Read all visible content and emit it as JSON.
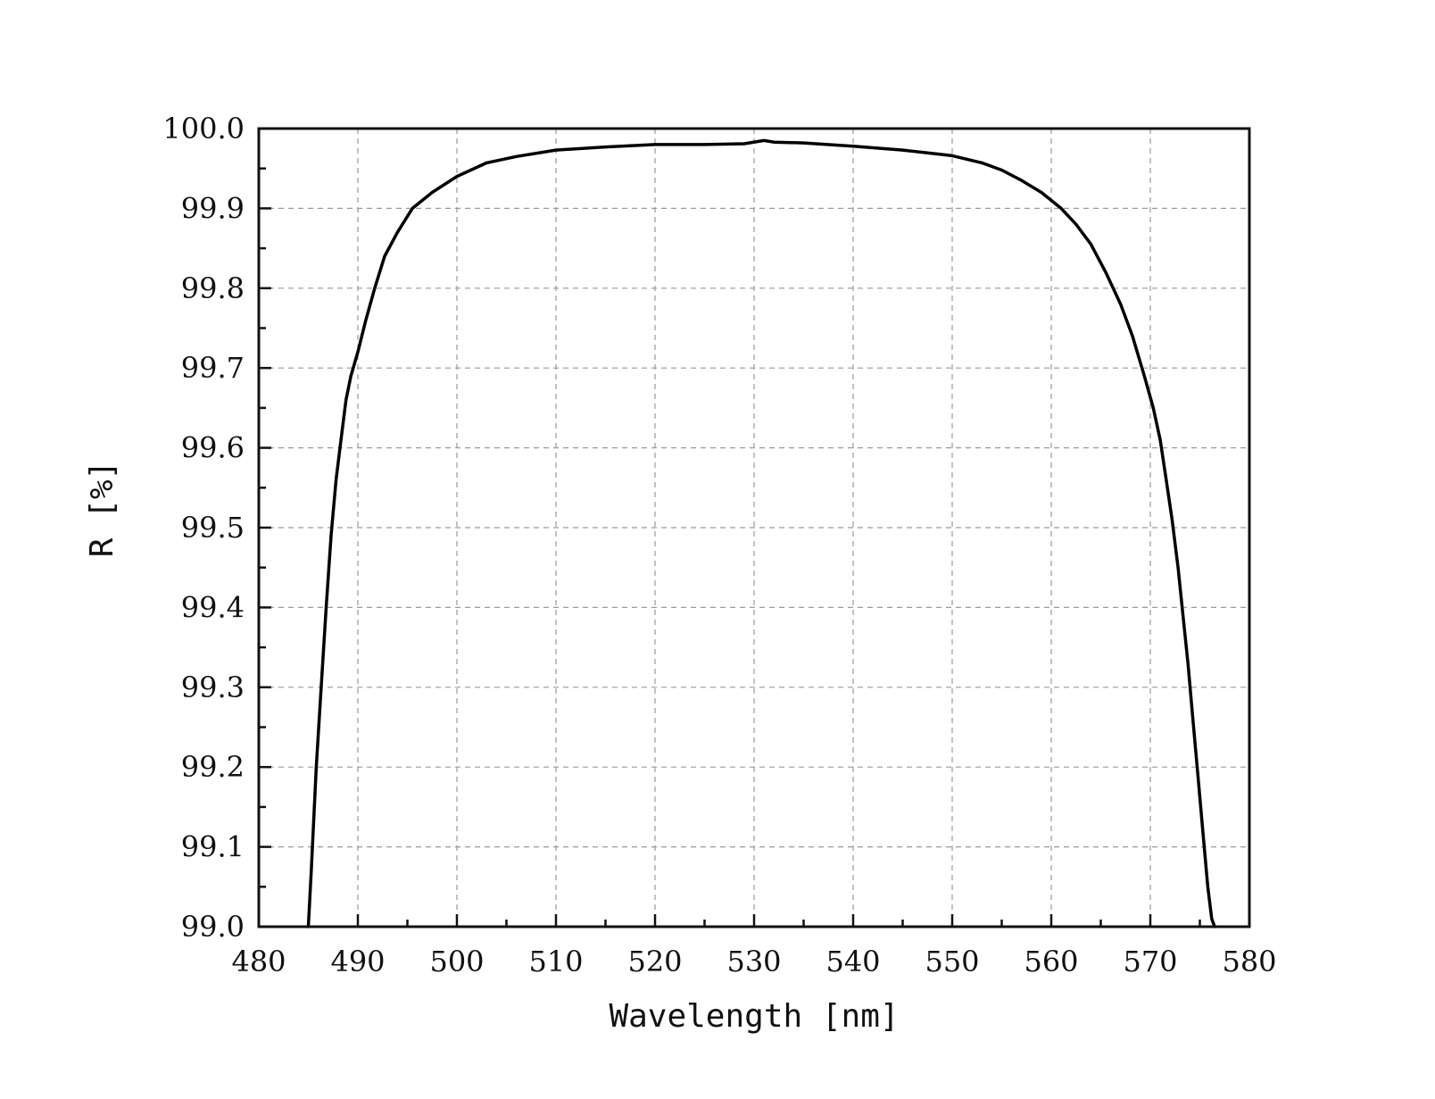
{
  "chart_data": {
    "type": "line",
    "title": "",
    "xlabel": "Wavelength [nm]",
    "ylabel": "R [%]",
    "xlim": [
      480,
      580
    ],
    "ylim": [
      99.0,
      100.0
    ],
    "xticks": [
      "480",
      "490",
      "500",
      "510",
      "520",
      "530",
      "540",
      "550",
      "560",
      "570",
      "580"
    ],
    "yticks": [
      "99.0",
      "99.1",
      "99.2",
      "99.3",
      "99.4",
      "99.5",
      "99.6",
      "99.7",
      "99.8",
      "99.9",
      "100.0"
    ],
    "grid": true,
    "line_color": "#000000",
    "series": [
      {
        "x": [
          485.0,
          485.3,
          485.8,
          486.3,
          486.8,
          487.3,
          487.8,
          488.3,
          488.8,
          489.3,
          490.0,
          490.8,
          491.7,
          492.7,
          494.0,
          495.5,
          497.5,
          500.0,
          503.0,
          506.0,
          510.0,
          515.0,
          520.0,
          525.0,
          529.0,
          531.0,
          532.0,
          535.0,
          540.0,
          545.0,
          550.0,
          553.0,
          555.0,
          557.0,
          559.0,
          561.0,
          562.5,
          564.0,
          565.5,
          567.0,
          568.2,
          569.4,
          570.3,
          571.0,
          571.6,
          572.2,
          572.8,
          573.3,
          573.8,
          574.3,
          574.8,
          575.3,
          575.8,
          576.2,
          576.5
        ],
        "y": [
          99.0,
          99.07,
          99.2,
          99.3,
          99.4,
          99.49,
          99.56,
          99.61,
          99.66,
          99.69,
          99.72,
          99.76,
          99.8,
          99.84,
          99.87,
          99.9,
          99.92,
          99.94,
          99.957,
          99.965,
          99.973,
          99.977,
          99.98,
          99.98,
          99.981,
          99.985,
          99.983,
          99.982,
          99.978,
          99.973,
          99.966,
          99.957,
          99.948,
          99.935,
          99.92,
          99.9,
          99.88,
          99.855,
          99.82,
          99.78,
          99.74,
          99.69,
          99.65,
          99.61,
          99.56,
          99.51,
          99.45,
          99.39,
          99.33,
          99.26,
          99.19,
          99.12,
          99.05,
          99.01,
          99.0
        ]
      }
    ]
  }
}
